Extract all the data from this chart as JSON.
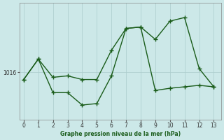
{
  "background_color": "#cce8e8",
  "grid_color": "#aacccc",
  "line_color": "#1a5c1a",
  "xlabel": "Graphe pression niveau de la mer (hPa)",
  "ytick_val": 1016,
  "x_ticks": [
    0,
    1,
    2,
    3,
    4,
    5,
    6,
    7,
    8,
    9,
    10,
    11,
    12,
    13
  ],
  "xlim": [
    -0.3,
    13.5
  ],
  "ylim": [
    1009.5,
    1025.5
  ],
  "upper_x": [
    0,
    1,
    2,
    3,
    4,
    5,
    6,
    7,
    8,
    9,
    10,
    11,
    12,
    13
  ],
  "upper_y": [
    1015.0,
    1017.8,
    1015.3,
    1015.5,
    1015.0,
    1015.0,
    1019.0,
    1022.0,
    1022.2,
    1020.5,
    1023.0,
    1023.5,
    1016.5,
    1014.0
  ],
  "lower_x": [
    0,
    1,
    2,
    3,
    4,
    5,
    6,
    7,
    8,
    9,
    10,
    11,
    12,
    13
  ],
  "lower_y": [
    1015.0,
    1017.8,
    1013.2,
    1013.2,
    1011.5,
    1011.7,
    1015.5,
    1022.0,
    1022.2,
    1013.5,
    1013.8,
    1014.0,
    1014.2,
    1014.0
  ],
  "marker_size": 4,
  "line_width": 1.0
}
